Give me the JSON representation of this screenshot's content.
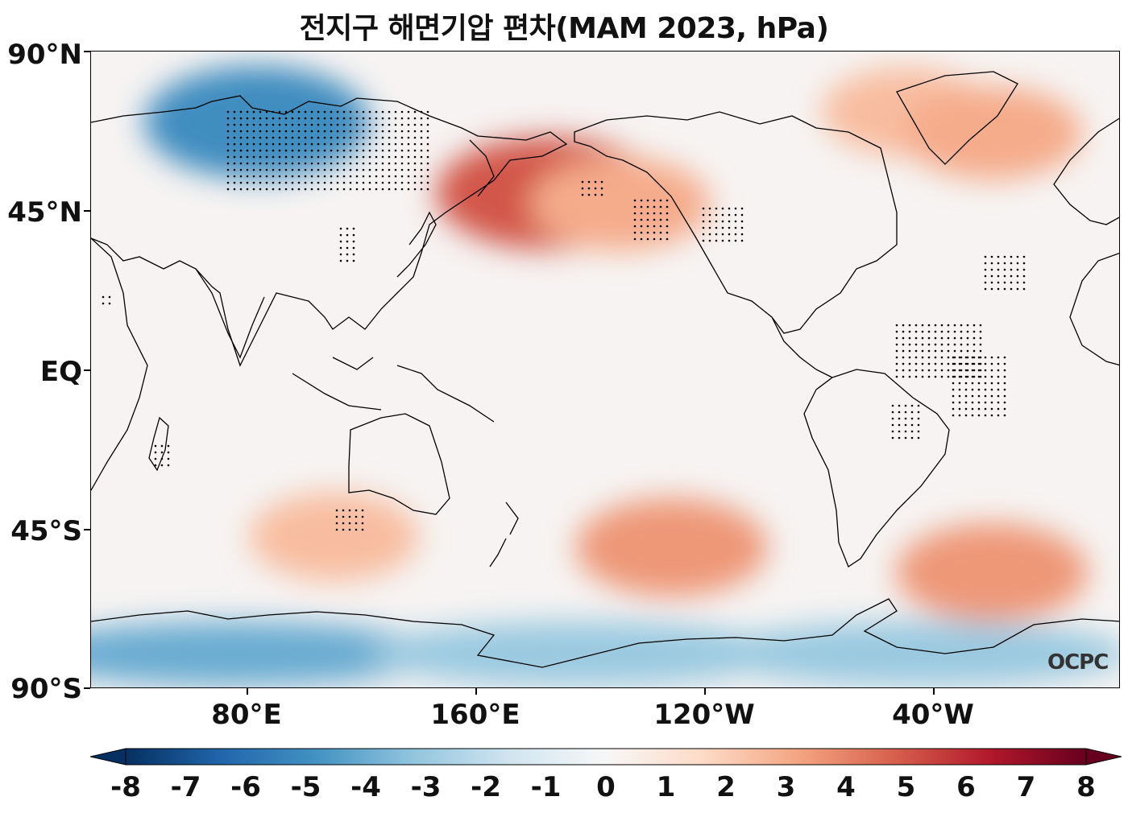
{
  "title": "전지구 해면기압 편차(MAM 2023, hPa)",
  "watermark": "OCPC",
  "map": {
    "projection": "equirectangular",
    "central_longitude": 160,
    "lon_range": [
      30,
      290
    ],
    "lat_range": [
      -90,
      90
    ],
    "variable": "sea level pressure anomaly",
    "stippling": "significance dots"
  },
  "lat_ticks": [
    {
      "value": 90,
      "label": "90°N"
    },
    {
      "value": 45,
      "label": "45°N"
    },
    {
      "value": 0,
      "label": "EQ"
    },
    {
      "value": -45,
      "label": "45°S"
    },
    {
      "value": -90,
      "label": "90°S"
    }
  ],
  "lon_ticks": [
    {
      "value": 80,
      "label": "80°E"
    },
    {
      "value": 160,
      "label": "160°E"
    },
    {
      "value": 240,
      "label": "120°W"
    },
    {
      "value": 320,
      "label": "40°W"
    }
  ],
  "colorbar": {
    "min": -8,
    "max": 8,
    "extend": "both",
    "colormap": "RdBu_r",
    "ticks": [
      "-8",
      "-7",
      "-6",
      "-5",
      "-4",
      "-3",
      "-2",
      "-1",
      "0",
      "1",
      "2",
      "3",
      "4",
      "5",
      "6",
      "7",
      "8"
    ],
    "colors": [
      "#053061",
      "#2166ac",
      "#4393c3",
      "#92c5de",
      "#d1e5f0",
      "#f7f7f7",
      "#fddbc7",
      "#f4a582",
      "#d6604d",
      "#b2182b",
      "#67001f"
    ]
  },
  "anomaly_features": [
    {
      "name": "Siberia low",
      "lon": 88,
      "lat": 70,
      "value": -5
    },
    {
      "name": "North Pacific high",
      "lon": 190,
      "lat": 50,
      "value": 5
    },
    {
      "name": "Gulf of Alaska high",
      "lon": 215,
      "lat": 47,
      "value": 3
    },
    {
      "name": "Greenland high",
      "lon": 315,
      "lat": 73,
      "value": 2.5
    },
    {
      "name": "Iceland high",
      "lon": 345,
      "lat": 67,
      "value": 3
    },
    {
      "name": "South Pacific high",
      "lon": 233,
      "lat": -50,
      "value": 3.5
    },
    {
      "name": "South Atlantic high",
      "lon": 345,
      "lat": -57,
      "value": 3.5
    },
    {
      "name": "South Indian Ocean high",
      "lon": 115,
      "lat": -47,
      "value": 2.5
    },
    {
      "name": "Antarctic low",
      "lon": 80,
      "lat": -80,
      "value": -4
    },
    {
      "name": "Antarctic low east",
      "lon": 200,
      "lat": -80,
      "value": -3
    },
    {
      "name": "Antarctic low west",
      "lon": 320,
      "lat": -80,
      "value": -3
    }
  ]
}
